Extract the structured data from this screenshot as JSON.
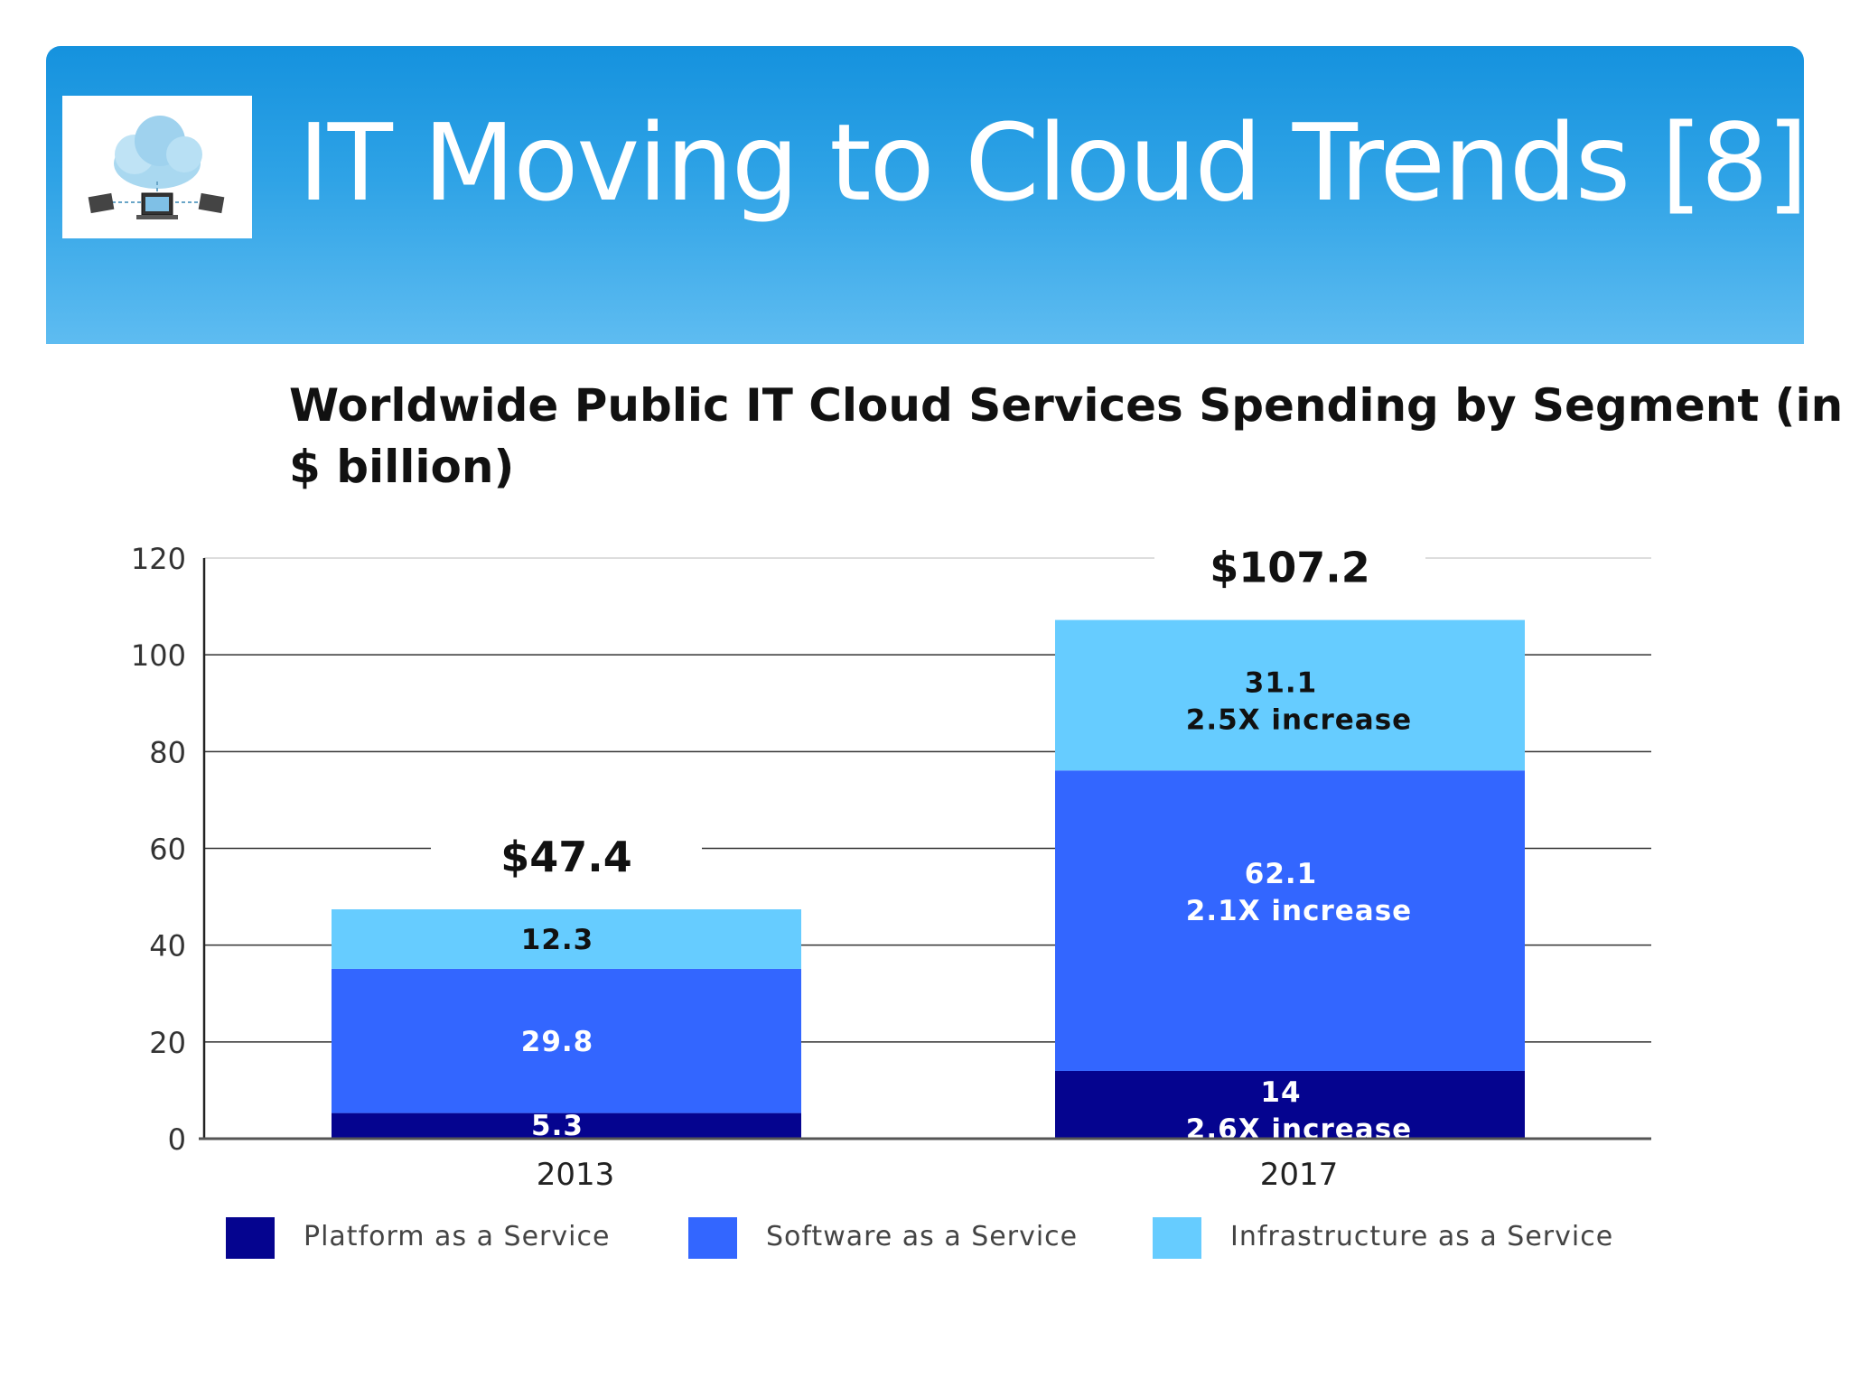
{
  "header": {
    "title": "IT Moving to Cloud Trends [8]",
    "logo_icon": "cloud-network-icon"
  },
  "colors": {
    "header_gradient_top": "#1592de",
    "header_gradient_bottom": "#5ebcf1",
    "paas": "#05048f",
    "saas": "#3366ff",
    "iaas": "#66ccff"
  },
  "chart_data": {
    "type": "bar",
    "stacked": true,
    "title": "Worldwide Public IT Cloud Services Spending by Segment (in $ billion)",
    "xlabel": "",
    "ylabel": "",
    "categories": [
      "2013",
      "2017"
    ],
    "ylim": [
      0,
      120
    ],
    "yticks": [
      "0",
      "20",
      "40",
      "60",
      "80",
      "100",
      "120"
    ],
    "grid": true,
    "legend_position": "bottom",
    "series": [
      {
        "name": "Platform as a Service",
        "color": "#05048f",
        "values": [
          5.3,
          14
        ],
        "labels": [
          [
            "5.3"
          ],
          [
            "14",
            "2.6X increase"
          ]
        ]
      },
      {
        "name": "Software as a Service",
        "color": "#3366ff",
        "values": [
          29.8,
          62.1
        ],
        "labels": [
          [
            "29.8"
          ],
          [
            "62.1",
            "2.1X increase"
          ]
        ]
      },
      {
        "name": "Infrastructure as a Service",
        "color": "#66ccff",
        "values": [
          12.3,
          31.1
        ],
        "labels": [
          [
            "12.3"
          ],
          [
            "31.1",
            "2.5X increase"
          ]
        ]
      }
    ],
    "totals": [
      "$47.4",
      "$107.2"
    ],
    "total_values": [
      47.4,
      107.2
    ]
  }
}
